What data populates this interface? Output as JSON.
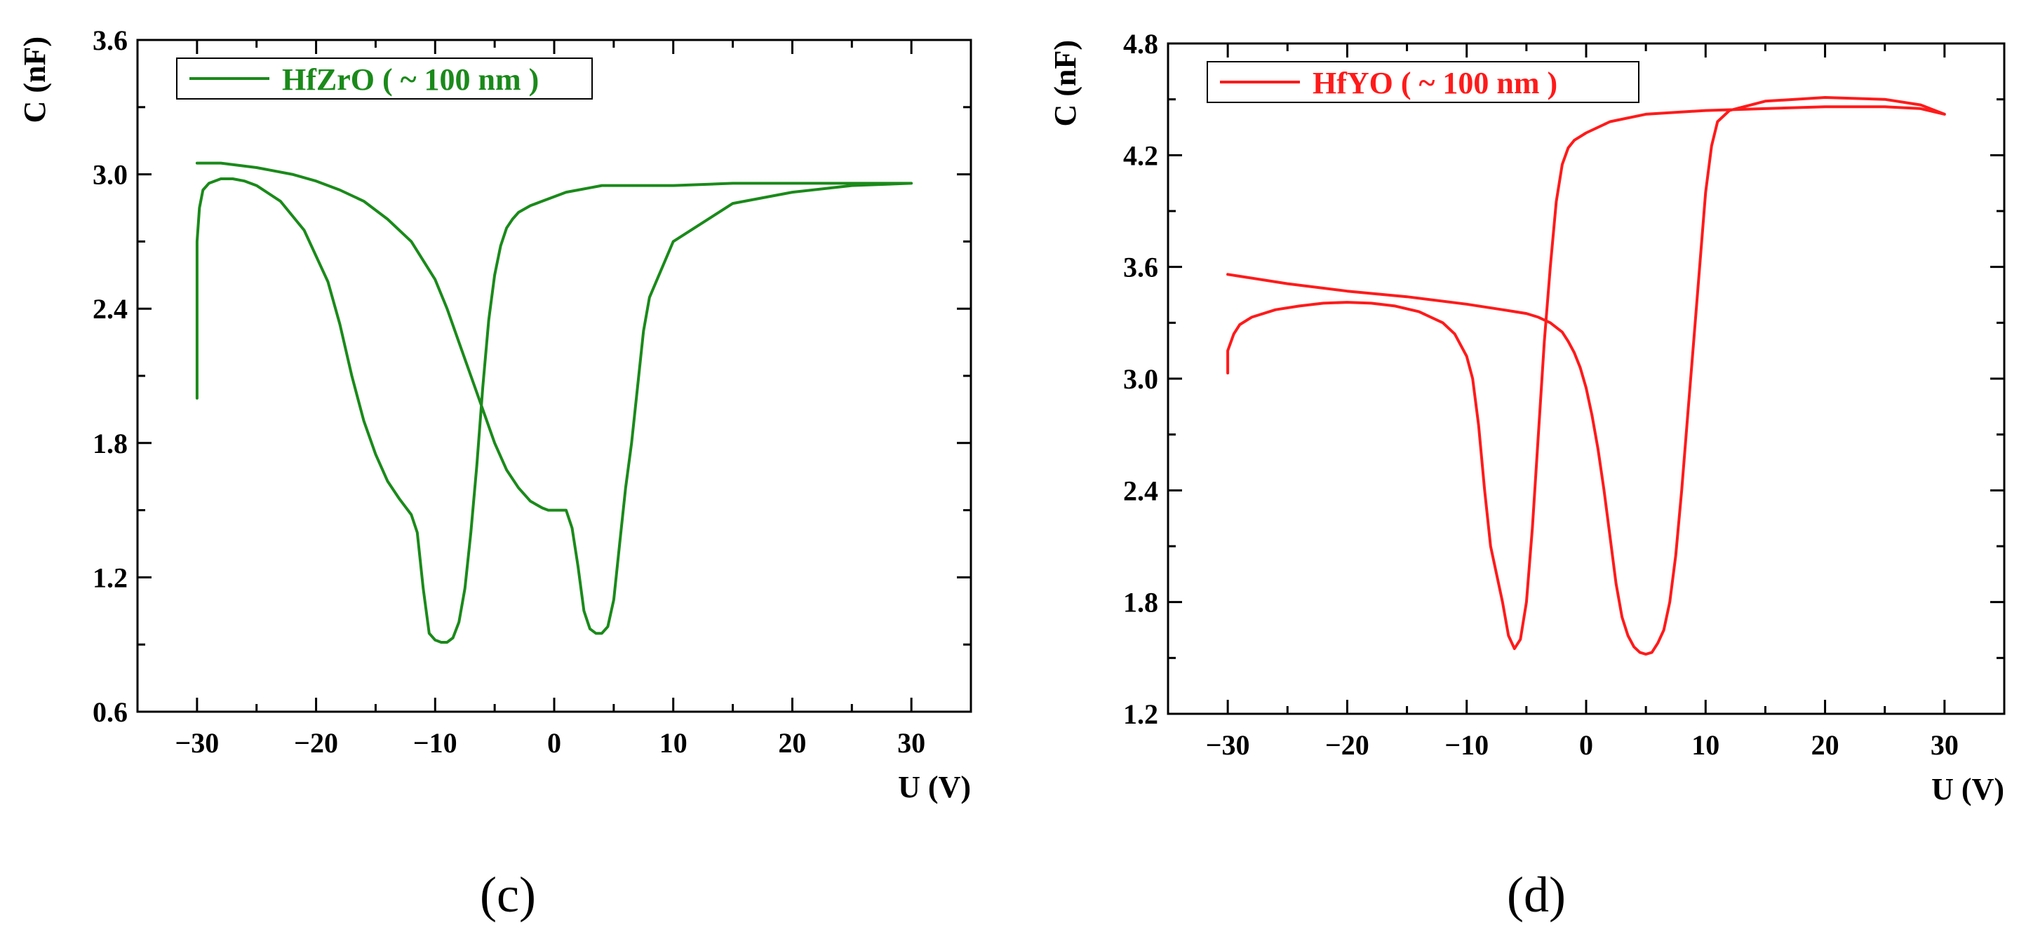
{
  "chart_data": [
    {
      "type": "line",
      "panel_label": "(c)",
      "xlabel": "U (V)",
      "ylabel": "C (nF)",
      "xlim": [
        -35,
        35
      ],
      "ylim": [
        0.6,
        3.6
      ],
      "xticks": [
        -30,
        -20,
        -10,
        0,
        10,
        20,
        30
      ],
      "yticks": [
        0.6,
        1.2,
        1.8,
        2.4,
        3.0,
        3.6
      ],
      "x_tick_labels": [
        "−30",
        "−20",
        "−10",
        "0",
        "10",
        "20",
        "30"
      ],
      "y_tick_labels": [
        "0.6",
        "1.2",
        "1.8",
        "2.4",
        "3.0",
        "3.6"
      ],
      "grid": false,
      "legend_position": "top-left",
      "color": "#1a8a1a",
      "series": [
        {
          "name": "HfZrO ( ~ 100 nm )",
          "x": [
            -30,
            -30,
            -29.8,
            -29.5,
            -29,
            -28,
            -27,
            -26,
            -25,
            -23,
            -21,
            -19,
            -18,
            -17,
            -16,
            -15,
            -14,
            -13,
            -12,
            -11.5,
            -11,
            -10.5,
            -10,
            -9.5,
            -9,
            -8.5,
            -8,
            -7.5,
            -7,
            -6.5,
            -6,
            -5.5,
            -5,
            -4.5,
            -4,
            -3.5,
            -3,
            -2,
            -1,
            0,
            1,
            2,
            3,
            4,
            5,
            10,
            15,
            20,
            25,
            30,
            25,
            20,
            15,
            10,
            8,
            7.5,
            7,
            6.5,
            6,
            5.5,
            5,
            4.5,
            4,
            3.5,
            3,
            2.5,
            2,
            1.5,
            1,
            0.5,
            0,
            -0.5,
            -1,
            -2,
            -3,
            -4,
            -5,
            -6,
            -7,
            -8,
            -9,
            -10,
            -12,
            -14,
            -16,
            -18,
            -20,
            -22,
            -25,
            -28,
            -30
          ],
          "y": [
            2.0,
            2.7,
            2.85,
            2.93,
            2.96,
            2.98,
            2.98,
            2.97,
            2.95,
            2.88,
            2.75,
            2.52,
            2.33,
            2.1,
            1.9,
            1.75,
            1.63,
            1.55,
            1.48,
            1.4,
            1.15,
            0.95,
            0.92,
            0.91,
            0.91,
            0.93,
            1.0,
            1.15,
            1.4,
            1.7,
            2.05,
            2.35,
            2.55,
            2.68,
            2.76,
            2.8,
            2.83,
            2.86,
            2.88,
            2.9,
            2.92,
            2.93,
            2.94,
            2.95,
            2.95,
            2.95,
            2.96,
            2.96,
            2.96,
            2.96,
            2.95,
            2.92,
            2.87,
            2.7,
            2.45,
            2.3,
            2.05,
            1.8,
            1.6,
            1.35,
            1.1,
            0.98,
            0.95,
            0.95,
            0.97,
            1.05,
            1.25,
            1.42,
            1.5,
            1.5,
            1.5,
            1.5,
            1.51,
            1.54,
            1.6,
            1.68,
            1.8,
            1.95,
            2.1,
            2.25,
            2.4,
            2.53,
            2.7,
            2.8,
            2.88,
            2.93,
            2.97,
            3.0,
            3.03,
            3.05,
            3.05
          ]
        }
      ]
    },
    {
      "type": "line",
      "panel_label": "(d)",
      "xlabel": "U (V)",
      "ylabel": "C (nF)",
      "xlim": [
        -35,
        35
      ],
      "ylim": [
        1.2,
        4.8
      ],
      "xticks": [
        -30,
        -20,
        -10,
        0,
        10,
        20,
        30
      ],
      "yticks": [
        1.2,
        1.8,
        2.4,
        3.0,
        3.6,
        4.2,
        4.8
      ],
      "x_tick_labels": [
        "−30",
        "−20",
        "−10",
        "0",
        "10",
        "20",
        "30"
      ],
      "y_tick_labels": [
        "1.2",
        "1.8",
        "2.4",
        "3.0",
        "3.6",
        "4.2",
        "4.8"
      ],
      "grid": false,
      "legend_position": "top-left",
      "color": "#ff1a1a",
      "series": [
        {
          "name": "HfYO ( ~ 100 nm )",
          "x": [
            -30,
            -30,
            -29.5,
            -29,
            -28,
            -26,
            -24,
            -22,
            -20,
            -18,
            -16,
            -14,
            -12,
            -11,
            -10,
            -9.5,
            -9,
            -8.5,
            -8,
            -7.5,
            -7,
            -6.5,
            -6,
            -5.5,
            -5,
            -4.5,
            -4,
            -3.5,
            -3,
            -2.5,
            -2,
            -1.5,
            -1,
            0,
            2,
            5,
            10,
            15,
            20,
            25,
            28,
            30,
            28,
            25,
            20,
            15,
            12,
            11,
            10.5,
            10,
            9.5,
            9,
            8.5,
            8,
            7.5,
            7,
            6.5,
            6,
            5.5,
            5,
            4.5,
            4,
            3.5,
            3,
            2.5,
            2,
            1.5,
            1,
            0.5,
            0,
            -0.5,
            -1,
            -1.5,
            -2,
            -3,
            -4,
            -5,
            -7,
            -10,
            -15,
            -20,
            -25,
            -30
          ],
          "y": [
            3.03,
            3.15,
            3.24,
            3.29,
            3.33,
            3.37,
            3.39,
            3.405,
            3.41,
            3.405,
            3.39,
            3.36,
            3.3,
            3.24,
            3.12,
            3.0,
            2.75,
            2.4,
            2.1,
            1.95,
            1.8,
            1.62,
            1.55,
            1.6,
            1.8,
            2.2,
            2.7,
            3.2,
            3.6,
            3.95,
            4.15,
            4.24,
            4.28,
            4.32,
            4.38,
            4.42,
            4.44,
            4.45,
            4.46,
            4.46,
            4.45,
            4.42,
            4.47,
            4.5,
            4.51,
            4.49,
            4.44,
            4.38,
            4.25,
            4.0,
            3.6,
            3.2,
            2.8,
            2.4,
            2.05,
            1.8,
            1.65,
            1.58,
            1.53,
            1.52,
            1.53,
            1.56,
            1.62,
            1.72,
            1.9,
            2.15,
            2.4,
            2.62,
            2.8,
            2.95,
            3.06,
            3.14,
            3.2,
            3.25,
            3.3,
            3.33,
            3.35,
            3.37,
            3.4,
            3.44,
            3.47,
            3.51,
            3.56
          ]
        }
      ]
    }
  ]
}
